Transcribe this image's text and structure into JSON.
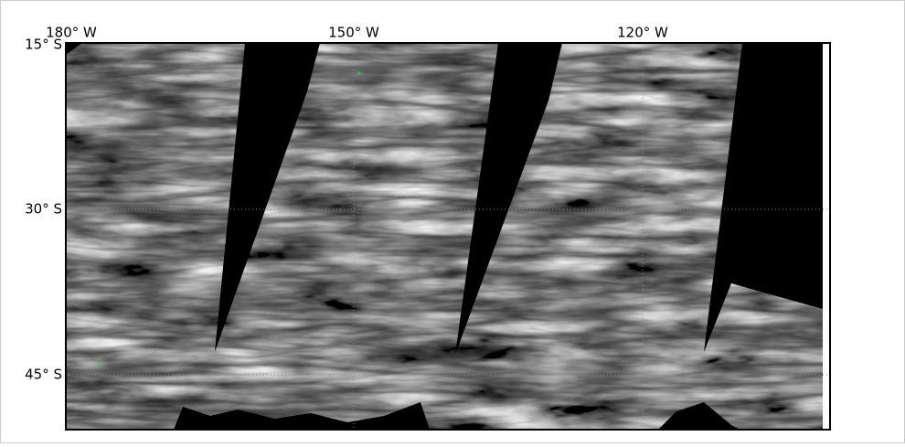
{
  "map": {
    "lon_labels": [
      "180° W",
      "150° W",
      "120° W"
    ],
    "lat_labels": [
      "15° S",
      "30° S",
      "45° S"
    ]
  }
}
